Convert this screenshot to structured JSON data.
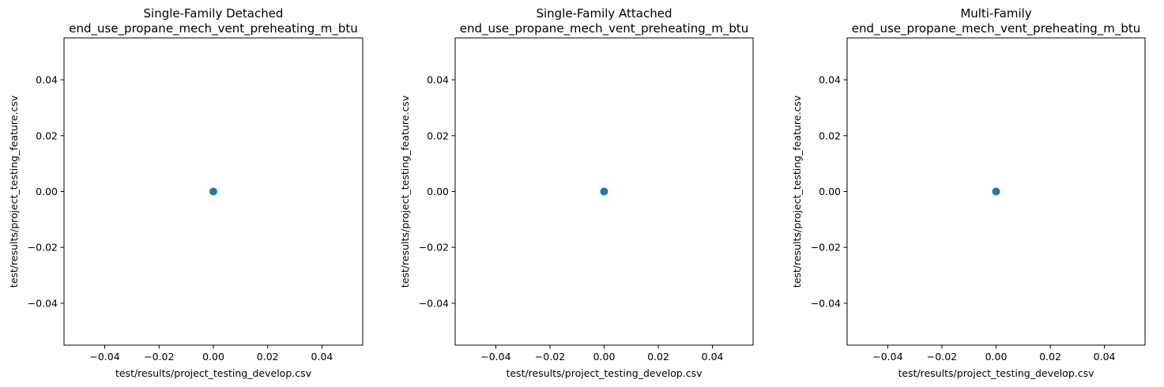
{
  "chart_data": [
    {
      "type": "scatter",
      "title": "Single-Family Detached",
      "subtitle": "end_use_propane_mech_vent_preheating_m_btu",
      "xlabel": "test/results/project_testing_develop.csv",
      "ylabel": "test/results/project_testing_feature.csv",
      "xlim": [
        -0.055,
        0.055
      ],
      "ylim": [
        -0.055,
        0.055
      ],
      "xticks": [
        -0.04,
        -0.02,
        0.0,
        0.02,
        0.04
      ],
      "yticks": [
        -0.04,
        -0.02,
        0.0,
        0.02,
        0.04
      ],
      "xtick_labels": [
        "−0.04",
        "−0.02",
        "0.00",
        "0.02",
        "0.04"
      ],
      "ytick_labels": [
        "−0.04",
        "−0.02",
        "0.00",
        "0.02",
        "0.04"
      ],
      "grid": false,
      "points": [
        {
          "x": 0.0,
          "y": 0.0
        }
      ],
      "color": "#1f77b4"
    },
    {
      "type": "scatter",
      "title": "Single-Family Attached",
      "subtitle": "end_use_propane_mech_vent_preheating_m_btu",
      "xlabel": "test/results/project_testing_develop.csv",
      "ylabel": "test/results/project_testing_feature.csv",
      "xlim": [
        -0.055,
        0.055
      ],
      "ylim": [
        -0.055,
        0.055
      ],
      "xticks": [
        -0.04,
        -0.02,
        0.0,
        0.02,
        0.04
      ],
      "yticks": [
        -0.04,
        -0.02,
        0.0,
        0.02,
        0.04
      ],
      "xtick_labels": [
        "−0.04",
        "−0.02",
        "0.00",
        "0.02",
        "0.04"
      ],
      "ytick_labels": [
        "−0.04",
        "−0.02",
        "0.00",
        "0.02",
        "0.04"
      ],
      "grid": false,
      "points": [
        {
          "x": 0.0,
          "y": 0.0
        }
      ],
      "color": "#1f77b4"
    },
    {
      "type": "scatter",
      "title": "Multi-Family",
      "subtitle": "end_use_propane_mech_vent_preheating_m_btu",
      "xlabel": "test/results/project_testing_develop.csv",
      "ylabel": "test/results/project_testing_feature.csv",
      "xlim": [
        -0.055,
        0.055
      ],
      "ylim": [
        -0.055,
        0.055
      ],
      "xticks": [
        -0.04,
        -0.02,
        0.0,
        0.02,
        0.04
      ],
      "yticks": [
        -0.04,
        -0.02,
        0.0,
        0.02,
        0.04
      ],
      "xtick_labels": [
        "−0.04",
        "−0.02",
        "0.00",
        "0.02",
        "0.04"
      ],
      "ytick_labels": [
        "−0.04",
        "−0.02",
        "0.00",
        "0.02",
        "0.04"
      ],
      "grid": false,
      "points": [
        {
          "x": 0.0,
          "y": 0.0
        }
      ],
      "color": "#1f77b4"
    }
  ]
}
